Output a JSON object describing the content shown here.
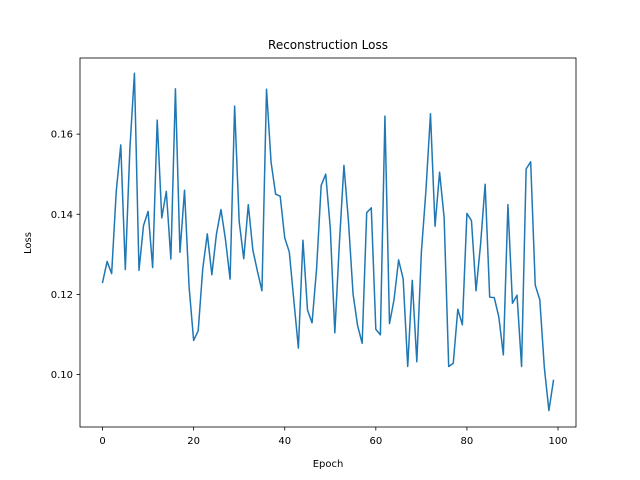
{
  "chart_data": {
    "type": "line",
    "title": "Reconstruction Loss",
    "xlabel": "Epoch",
    "ylabel": "Loss",
    "xlim": [
      -4.95,
      103.95
    ],
    "ylim": [
      0.0869,
      0.179
    ],
    "xticks": [
      0,
      20,
      40,
      60,
      80,
      100
    ],
    "yticks": [
      0.1,
      0.12,
      0.14,
      0.16
    ],
    "xtick_labels": [
      "0",
      "20",
      "40",
      "60",
      "80",
      "100"
    ],
    "ytick_labels": [
      "0.10",
      "0.12",
      "0.14",
      "0.16"
    ],
    "grid": false,
    "line_color": "#1f77b4",
    "series": [
      {
        "x": [
          0,
          1,
          2,
          3,
          4,
          5,
          6,
          7,
          8,
          9,
          10,
          11,
          12,
          13,
          14,
          15,
          16,
          17,
          18,
          19,
          20,
          21,
          22,
          23,
          24,
          25,
          26,
          27,
          28,
          29,
          30,
          31,
          32,
          33,
          34,
          35,
          36,
          37,
          38,
          39,
          40,
          41,
          42,
          43,
          44,
          45,
          46,
          47,
          48,
          49,
          50,
          51,
          52,
          53,
          54,
          55,
          56,
          57,
          58,
          59,
          60,
          61,
          62,
          63,
          64,
          65,
          66,
          67,
          68,
          69,
          70,
          71,
          72,
          73,
          74,
          75,
          76,
          77,
          78,
          79,
          80,
          81,
          82,
          83,
          84,
          85,
          86,
          87,
          88,
          89,
          90,
          91,
          92,
          93,
          94,
          95,
          96,
          97,
          98,
          99
        ],
        "values": [
          0.123,
          0.1282,
          0.1252,
          0.1456,
          0.1573,
          0.1262,
          0.1563,
          0.1752,
          0.126,
          0.1372,
          0.1407,
          0.1267,
          0.1635,
          0.1391,
          0.1457,
          0.1288,
          0.1713,
          0.1305,
          0.146,
          0.1219,
          0.1085,
          0.1109,
          0.1264,
          0.1351,
          0.1249,
          0.135,
          0.1412,
          0.1336,
          0.1238,
          0.167,
          0.1382,
          0.1289,
          0.1424,
          0.1311,
          0.1258,
          0.1209,
          0.1712,
          0.153,
          0.145,
          0.1445,
          0.1341,
          0.1306,
          0.1185,
          0.1066,
          0.1335,
          0.1161,
          0.1129,
          0.1265,
          0.1472,
          0.15,
          0.1366,
          0.1104,
          0.1328,
          0.1522,
          0.1381,
          0.1201,
          0.1122,
          0.1078,
          0.1404,
          0.1416,
          0.1113,
          0.1099,
          0.1645,
          0.1127,
          0.1187,
          0.1286,
          0.1239,
          0.102,
          0.1235,
          0.1032,
          0.1305,
          0.1459,
          0.1651,
          0.137,
          0.1505,
          0.1391,
          0.102,
          0.1028,
          0.1163,
          0.1124,
          0.1402,
          0.1384,
          0.1209,
          0.1325,
          0.1475,
          0.1193,
          0.1192,
          0.1144,
          0.1049,
          0.1424,
          0.1178,
          0.1198,
          0.102,
          0.1513,
          0.1531,
          0.1223,
          0.1187,
          0.1017,
          0.091,
          0.0985
        ]
      }
    ]
  }
}
